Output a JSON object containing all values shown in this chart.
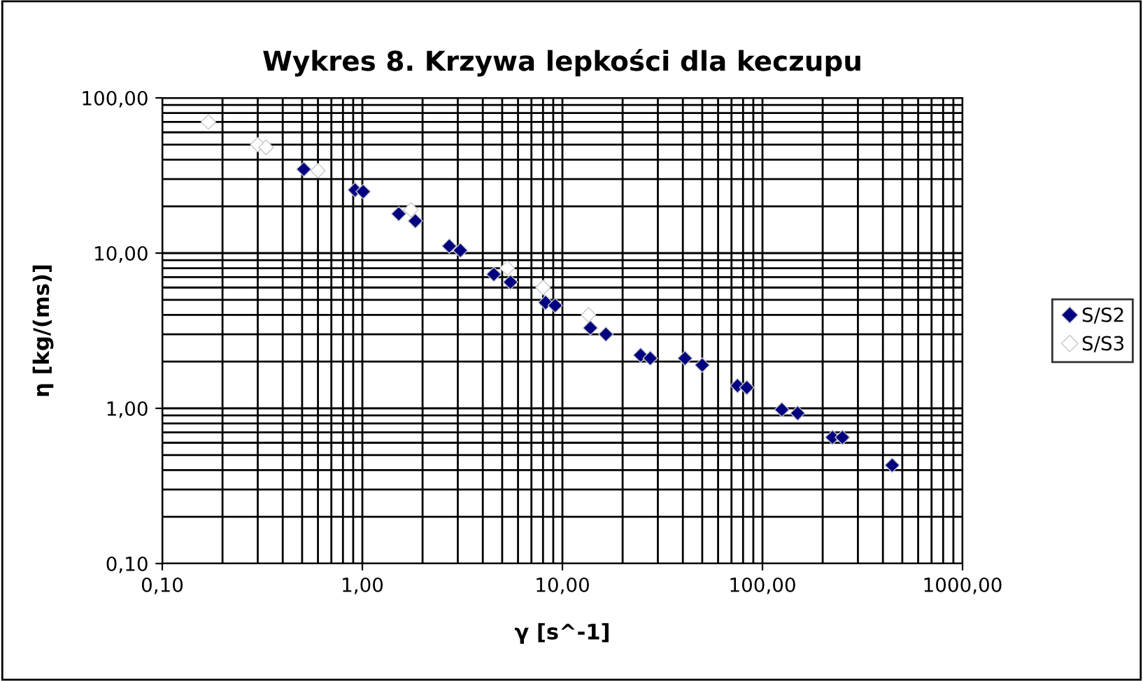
{
  "chart_data": {
    "type": "scatter",
    "title": "Wykres 8. Krzywa lepkości dla keczupu",
    "xlabel": "γ [s^-1]",
    "ylabel": "η [kg/(ms)]",
    "log": "xy",
    "grid": true,
    "legend": "right",
    "marker": "diamond",
    "xlim": [
      0.1,
      1000
    ],
    "ylim": [
      0.1,
      100
    ],
    "xticks": [
      {
        "value": 0.1,
        "label": "0,10"
      },
      {
        "value": 1,
        "label": "1,00"
      },
      {
        "value": 10,
        "label": "10,00"
      },
      {
        "value": 100,
        "label": "100,00"
      },
      {
        "value": 1000,
        "label": "1000,00"
      }
    ],
    "yticks": [
      {
        "value": 0.1,
        "label": "0,10"
      },
      {
        "value": 1,
        "label": "1,00"
      },
      {
        "value": 10,
        "label": "10,00"
      },
      {
        "value": 100,
        "label": "100,00"
      }
    ],
    "series": [
      {
        "name": "S/S2",
        "color": "#000080",
        "x": [
          0.51,
          0.92,
          1.01,
          1.52,
          1.84,
          2.72,
          3.09,
          4.54,
          5.5,
          8.24,
          9.2,
          13.8,
          16.5,
          24.6,
          27.5,
          41,
          50,
          75,
          83.5,
          125,
          150,
          224,
          251,
          445
        ],
        "values": [
          34.7,
          25.5,
          24.9,
          17.9,
          16.1,
          11.1,
          10.4,
          7.3,
          6.5,
          4.8,
          4.6,
          3.3,
          3.0,
          2.2,
          2.1,
          2.1,
          1.9,
          1.4,
          1.36,
          0.98,
          0.93,
          0.65,
          0.65,
          0.43
        ]
      },
      {
        "name": "S/S3",
        "color": "#ffffff",
        "x": [
          0.17,
          0.3,
          0.33,
          0.6,
          1.75,
          5.3,
          8,
          13.5
        ],
        "values": [
          70,
          50,
          48,
          34,
          19,
          8,
          6,
          4
        ]
      }
    ]
  }
}
